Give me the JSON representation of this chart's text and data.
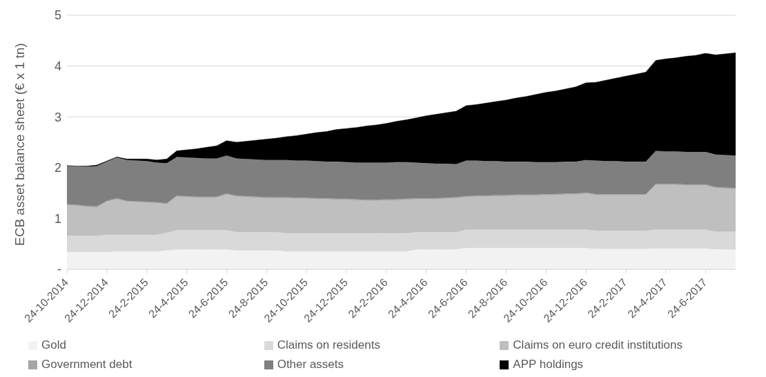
{
  "chart_data": {
    "type": "area",
    "stacked": true,
    "ylabel": "ECB asset balance sheet (€ x 1 tn)",
    "categories": [
      "24-10-2014",
      null,
      null,
      null,
      "24-12-2014",
      null,
      null,
      null,
      "24-2-2015",
      null,
      null,
      null,
      "24-4-2015",
      null,
      null,
      null,
      "24-6-2015",
      null,
      null,
      null,
      "24-8-2015",
      null,
      null,
      null,
      "24-10-2015",
      null,
      null,
      null,
      "24-12-2015",
      null,
      null,
      null,
      "24-2-2016",
      null,
      null,
      null,
      "24-4-2016",
      null,
      null,
      null,
      "24-6-2016",
      null,
      null,
      null,
      "24-8-2016",
      null,
      null,
      null,
      "24-10-2016",
      null,
      null,
      null,
      "24-12-2016",
      null,
      null,
      null,
      "24-2-2017",
      null,
      null,
      null,
      "24-4-2017",
      null,
      null,
      null,
      "24-6-2017",
      null,
      null,
      null
    ],
    "ylim": [
      0,
      5
    ],
    "yticks": [
      {
        "value": 0,
        "label": "-"
      },
      1,
      2,
      3,
      4,
      5
    ],
    "grid": "y",
    "legend": "bottom",
    "series": [
      {
        "name": "Gold",
        "color": "#f2f2f2",
        "values": [
          0.34,
          0.34,
          0.34,
          0.34,
          0.34,
          0.35,
          0.35,
          0.35,
          0.35,
          0.35,
          0.37,
          0.39,
          0.39,
          0.39,
          0.39,
          0.39,
          0.39,
          0.37,
          0.37,
          0.37,
          0.37,
          0.37,
          0.35,
          0.35,
          0.35,
          0.35,
          0.35,
          0.35,
          0.35,
          0.35,
          0.35,
          0.35,
          0.35,
          0.35,
          0.35,
          0.39,
          0.39,
          0.39,
          0.39,
          0.39,
          0.42,
          0.42,
          0.42,
          0.42,
          0.42,
          0.42,
          0.42,
          0.42,
          0.42,
          0.42,
          0.42,
          0.42,
          0.42,
          0.4,
          0.4,
          0.4,
          0.4,
          0.4,
          0.4,
          0.41,
          0.41,
          0.41,
          0.41,
          0.41,
          0.41,
          0.39,
          0.39,
          0.39
        ]
      },
      {
        "name": "Claims on residents",
        "color": "#d9d9d9",
        "values": [
          0.32,
          0.32,
          0.32,
          0.32,
          0.34,
          0.33,
          0.33,
          0.33,
          0.33,
          0.33,
          0.35,
          0.38,
          0.38,
          0.38,
          0.38,
          0.38,
          0.38,
          0.36,
          0.36,
          0.36,
          0.36,
          0.36,
          0.36,
          0.36,
          0.36,
          0.36,
          0.36,
          0.36,
          0.36,
          0.36,
          0.36,
          0.36,
          0.36,
          0.36,
          0.36,
          0.34,
          0.34,
          0.34,
          0.34,
          0.34,
          0.36,
          0.36,
          0.36,
          0.36,
          0.36,
          0.36,
          0.36,
          0.36,
          0.36,
          0.36,
          0.36,
          0.36,
          0.36,
          0.36,
          0.36,
          0.36,
          0.36,
          0.36,
          0.36,
          0.37,
          0.37,
          0.37,
          0.37,
          0.37,
          0.37,
          0.35,
          0.35,
          0.35
        ]
      },
      {
        "name": "Claims on euro credit institutions",
        "color": "#bfbfbf",
        "values": [
          0.6,
          0.59,
          0.57,
          0.56,
          0.65,
          0.7,
          0.65,
          0.64,
          0.63,
          0.62,
          0.56,
          0.66,
          0.65,
          0.64,
          0.64,
          0.64,
          0.7,
          0.7,
          0.69,
          0.68,
          0.67,
          0.67,
          0.69,
          0.68,
          0.68,
          0.67,
          0.67,
          0.66,
          0.66,
          0.65,
          0.64,
          0.64,
          0.65,
          0.65,
          0.66,
          0.65,
          0.65,
          0.65,
          0.66,
          0.67,
          0.64,
          0.65,
          0.65,
          0.66,
          0.66,
          0.67,
          0.67,
          0.67,
          0.68,
          0.68,
          0.69,
          0.69,
          0.71,
          0.7,
          0.7,
          0.7,
          0.7,
          0.7,
          0.7,
          0.88,
          0.88,
          0.88,
          0.87,
          0.87,
          0.87,
          0.86,
          0.85,
          0.84
        ]
      },
      {
        "name": "Government debt",
        "color": "#a5a5a5",
        "values": [
          0.02,
          0.02,
          0.02,
          0.02,
          0.02,
          0.02,
          0.02,
          0.02,
          0.02,
          0.02,
          0.02,
          0.02,
          0.02,
          0.02,
          0.02,
          0.02,
          0.02,
          0.02,
          0.02,
          0.02,
          0.02,
          0.02,
          0.02,
          0.02,
          0.02,
          0.02,
          0.02,
          0.02,
          0.02,
          0.02,
          0.02,
          0.02,
          0.02,
          0.02,
          0.02,
          0.02,
          0.02,
          0.02,
          0.02,
          0.02,
          0.02,
          0.02,
          0.02,
          0.02,
          0.02,
          0.02,
          0.02,
          0.02,
          0.02,
          0.02,
          0.02,
          0.02,
          0.02,
          0.02,
          0.02,
          0.02,
          0.02,
          0.02,
          0.02,
          0.02,
          0.02,
          0.02,
          0.02,
          0.02,
          0.02,
          0.02,
          0.02,
          0.02
        ]
      },
      {
        "name": "Other assets",
        "color": "#7f7f7f",
        "values": [
          0.76,
          0.76,
          0.77,
          0.79,
          0.77,
          0.8,
          0.8,
          0.8,
          0.8,
          0.78,
          0.79,
          0.76,
          0.76,
          0.76,
          0.75,
          0.75,
          0.75,
          0.73,
          0.73,
          0.73,
          0.73,
          0.73,
          0.73,
          0.73,
          0.73,
          0.73,
          0.72,
          0.73,
          0.72,
          0.72,
          0.73,
          0.73,
          0.72,
          0.73,
          0.72,
          0.7,
          0.69,
          0.68,
          0.67,
          0.65,
          0.7,
          0.69,
          0.68,
          0.67,
          0.66,
          0.65,
          0.65,
          0.64,
          0.63,
          0.63,
          0.63,
          0.63,
          0.64,
          0.66,
          0.65,
          0.65,
          0.64,
          0.64,
          0.64,
          0.65,
          0.64,
          0.64,
          0.64,
          0.64,
          0.64,
          0.64,
          0.64,
          0.64
        ]
      },
      {
        "name": "APP holdings",
        "color": "#000000",
        "values": [
          0.0,
          0.0,
          0.01,
          0.02,
          0.01,
          0.01,
          0.02,
          0.03,
          0.04,
          0.05,
          0.08,
          0.12,
          0.15,
          0.18,
          0.22,
          0.25,
          0.29,
          0.32,
          0.35,
          0.38,
          0.41,
          0.43,
          0.46,
          0.49,
          0.52,
          0.56,
          0.59,
          0.63,
          0.66,
          0.69,
          0.72,
          0.74,
          0.77,
          0.8,
          0.83,
          0.88,
          0.93,
          0.97,
          1.0,
          1.04,
          1.08,
          1.1,
          1.14,
          1.17,
          1.21,
          1.25,
          1.28,
          1.33,
          1.37,
          1.4,
          1.43,
          1.47,
          1.52,
          1.54,
          1.59,
          1.63,
          1.68,
          1.72,
          1.76,
          1.78,
          1.82,
          1.84,
          1.88,
          1.9,
          1.94,
          1.96,
          1.99,
          2.02
        ]
      }
    ]
  }
}
